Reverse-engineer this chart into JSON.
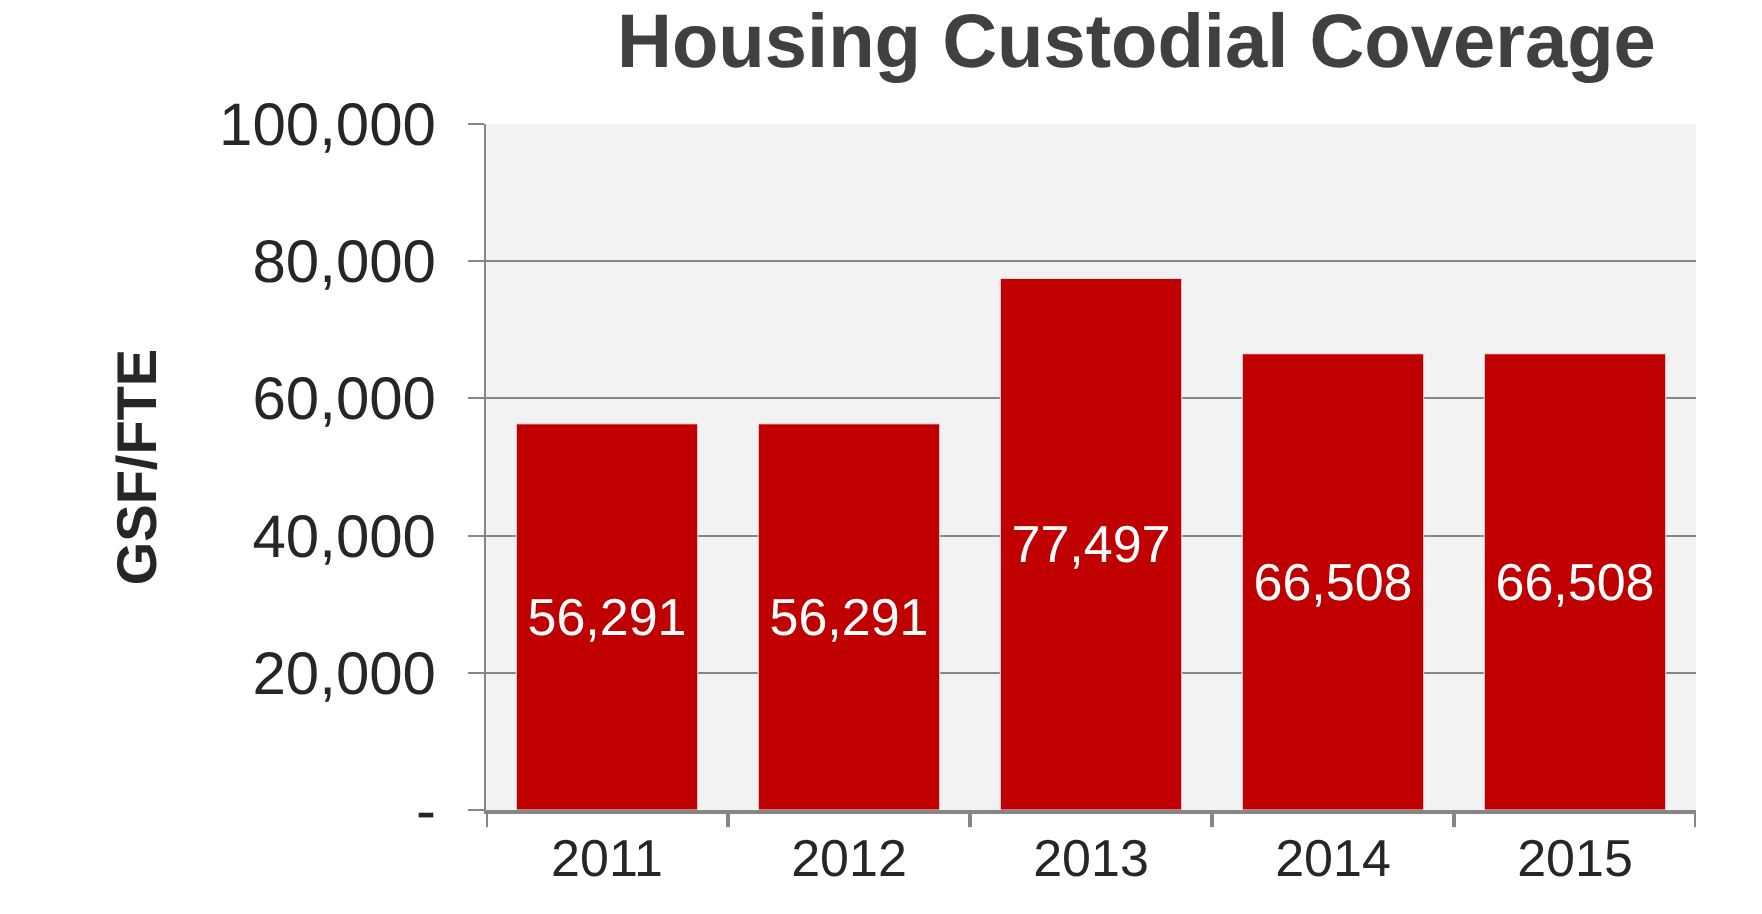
{
  "chart_data": {
    "type": "bar",
    "title": "Housing Custodial Coverage",
    "ylabel": "GSF/FTE",
    "categories": [
      "2011",
      "2012",
      "2013",
      "2014",
      "2015"
    ],
    "values": [
      56291,
      56291,
      77497,
      66508,
      66508
    ],
    "color": "#c00000",
    "ylim": [
      0,
      100000
    ],
    "yticks": [
      {
        "value": 0,
        "label": "-"
      },
      {
        "value": 20000,
        "label": "20,000"
      },
      {
        "value": 40000,
        "label": "40,000"
      },
      {
        "value": 60000,
        "label": "60,000"
      },
      {
        "value": 80000,
        "label": "80,000"
      },
      {
        "value": 100000,
        "label": "100,000"
      }
    ],
    "value_labels": [
      "56,291",
      "56,291",
      "77,497",
      "66,508",
      "66,508"
    ],
    "grid": "y"
  }
}
